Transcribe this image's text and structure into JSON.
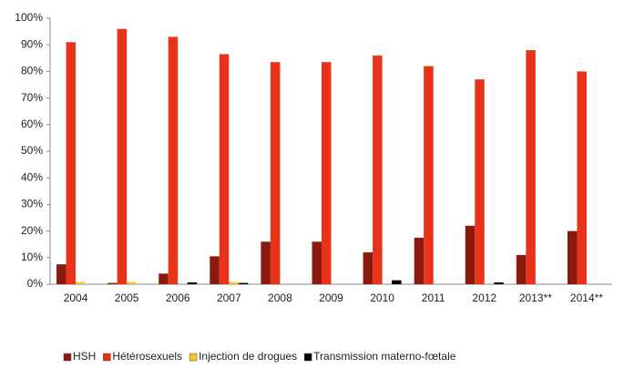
{
  "chart_data": {
    "type": "bar",
    "categories": [
      "2004",
      "2005",
      "2006",
      "2007",
      "2008",
      "2009",
      "2010",
      "2011",
      "2012",
      "2013**",
      "2014**"
    ],
    "series": [
      {
        "name": "HSH",
        "color": "#8b1a0e",
        "values": [
          7.5,
          0.5,
          4,
          10.5,
          16,
          16,
          12,
          17.5,
          22,
          11,
          20
        ]
      },
      {
        "name": "Hétérosexuels",
        "color": "#e8321a",
        "values": [
          91,
          96,
          93,
          86.5,
          83.5,
          83.5,
          86,
          82,
          77,
          88,
          80
        ]
      },
      {
        "name": "Injection de drogues",
        "color": "#f2c62a",
        "values": [
          0.8,
          0.8,
          0,
          0.8,
          0,
          0,
          0,
          0,
          0,
          0,
          0
        ]
      },
      {
        "name": "Transmission materno-fœtale",
        "color": "#000000",
        "values": [
          0,
          0,
          0.7,
          0.5,
          0,
          0,
          1.5,
          0,
          0.7,
          0,
          0
        ]
      }
    ],
    "ylim": [
      0,
      100
    ],
    "yticks": [
      {
        "value": 0,
        "label": "0%"
      },
      {
        "value": 10,
        "label": "10%"
      },
      {
        "value": 20,
        "label": "20%"
      },
      {
        "value": 30,
        "label": "30%"
      },
      {
        "value": 40,
        "label": "40%"
      },
      {
        "value": 50,
        "label": "50%"
      },
      {
        "value": 60,
        "label": "60%"
      },
      {
        "value": 70,
        "label": "70%"
      },
      {
        "value": 80,
        "label": "80%"
      },
      {
        "value": 90,
        "label": "90%"
      },
      {
        "value": 100,
        "label": "100%"
      }
    ],
    "legend": "bottom"
  }
}
